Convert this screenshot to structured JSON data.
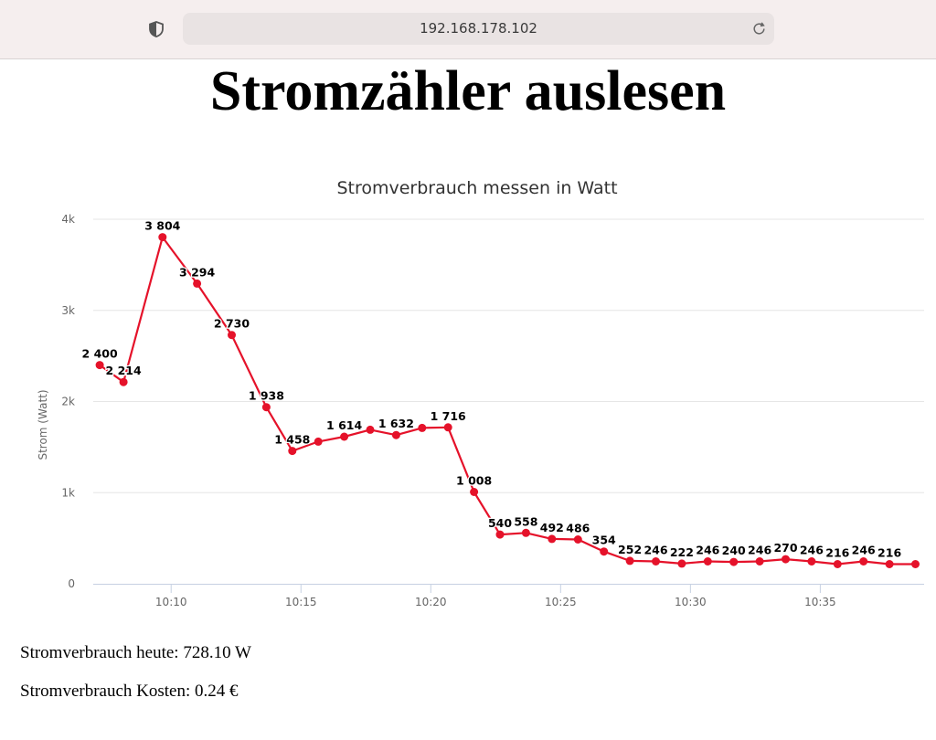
{
  "browser": {
    "url": "192.168.178.102",
    "icons": {
      "left": "shield-icon",
      "right": "reload-icon"
    }
  },
  "page": {
    "title": "Stromzähler auslesen",
    "consumption_today": "Stromverbrauch heute: 728.10 W",
    "consumption_cost": "Stromverbrauch Kosten: 0.24 €"
  },
  "chart_data": {
    "type": "line",
    "title": "Stromverbrauch messen in Watt",
    "xlabel": "",
    "ylabel": "Strom (Watt)",
    "ylim": [
      0,
      4000
    ],
    "yticks": [
      0,
      1000,
      2000,
      3000,
      4000
    ],
    "ytick_labels": [
      "0",
      "1k",
      "2k",
      "3k",
      "4k"
    ],
    "xlim": [
      "10:07",
      "10:39"
    ],
    "xticks": [
      "10:10",
      "10:15",
      "10:20",
      "10:25",
      "10:30",
      "10:35"
    ],
    "grid": true,
    "legend": false,
    "color": "#e5122a",
    "series": [
      {
        "x": [
          "10:07:15",
          "10:08:10",
          "10:09:40",
          "10:11:00",
          "10:12:20",
          "10:13:40",
          "10:14:40",
          "10:15:40",
          "10:16:40",
          "10:17:40",
          "10:18:40",
          "10:19:40",
          "10:20:40",
          "10:21:40",
          "10:22:40",
          "10:23:40",
          "10:24:40",
          "10:25:40",
          "10:26:40",
          "10:27:40",
          "10:28:40",
          "10:29:40",
          "10:30:40",
          "10:31:40",
          "10:32:40",
          "10:33:40",
          "10:34:40",
          "10:35:40",
          "10:36:40",
          "10:37:40",
          "10:38:40"
        ],
        "values": [
          2400,
          2214,
          3804,
          3294,
          2730,
          1938,
          1458,
          1560,
          1614,
          1690,
          1632,
          1710,
          1716,
          1008,
          540,
          558,
          492,
          486,
          354,
          252,
          246,
          222,
          246,
          240,
          246,
          270,
          246,
          216,
          246,
          216,
          216
        ],
        "labels": [
          "2 400",
          "2 214",
          "3 804",
          "3 294",
          "2 730",
          "1 938",
          "1 458",
          "",
          "1 614",
          "",
          "1 632",
          "",
          "1 716",
          "1 008",
          "540",
          "558",
          "492",
          "486",
          "354",
          "252",
          "246",
          "222",
          "246",
          "240",
          "246",
          "270",
          "246",
          "216",
          "246",
          "216",
          ""
        ]
      }
    ]
  }
}
